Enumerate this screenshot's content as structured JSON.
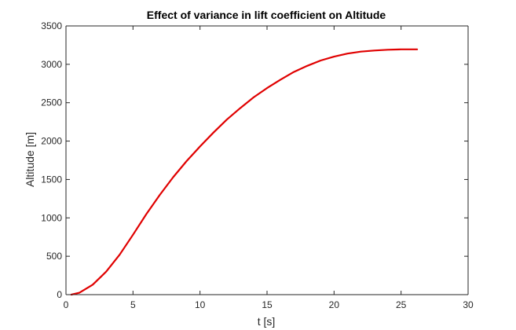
{
  "chart_data": {
    "type": "line",
    "title": "Effect of variance in lift coefficient on Altitude",
    "xlabel": "t [s]",
    "ylabel": "Altitude [m]",
    "xlim": [
      0,
      30
    ],
    "ylim": [
      0,
      3500
    ],
    "xticks": [
      0,
      5,
      10,
      15,
      20,
      25,
      30
    ],
    "yticks": [
      0,
      500,
      1000,
      1500,
      2000,
      2500,
      3000,
      3500
    ],
    "grid": false,
    "series": [
      {
        "color": "#e00000",
        "x": [
          0.4,
          1,
          2,
          3,
          4,
          5,
          6,
          7,
          8,
          9,
          10,
          11,
          12,
          13,
          14,
          15,
          16,
          17,
          18,
          19,
          20,
          21,
          22,
          23,
          24,
          25,
          26.2
        ],
        "y": [
          0,
          25,
          130,
          300,
          520,
          780,
          1050,
          1300,
          1530,
          1740,
          1930,
          2110,
          2280,
          2430,
          2570,
          2690,
          2800,
          2900,
          2980,
          3050,
          3100,
          3140,
          3165,
          3180,
          3190,
          3195,
          3195
        ]
      }
    ]
  }
}
